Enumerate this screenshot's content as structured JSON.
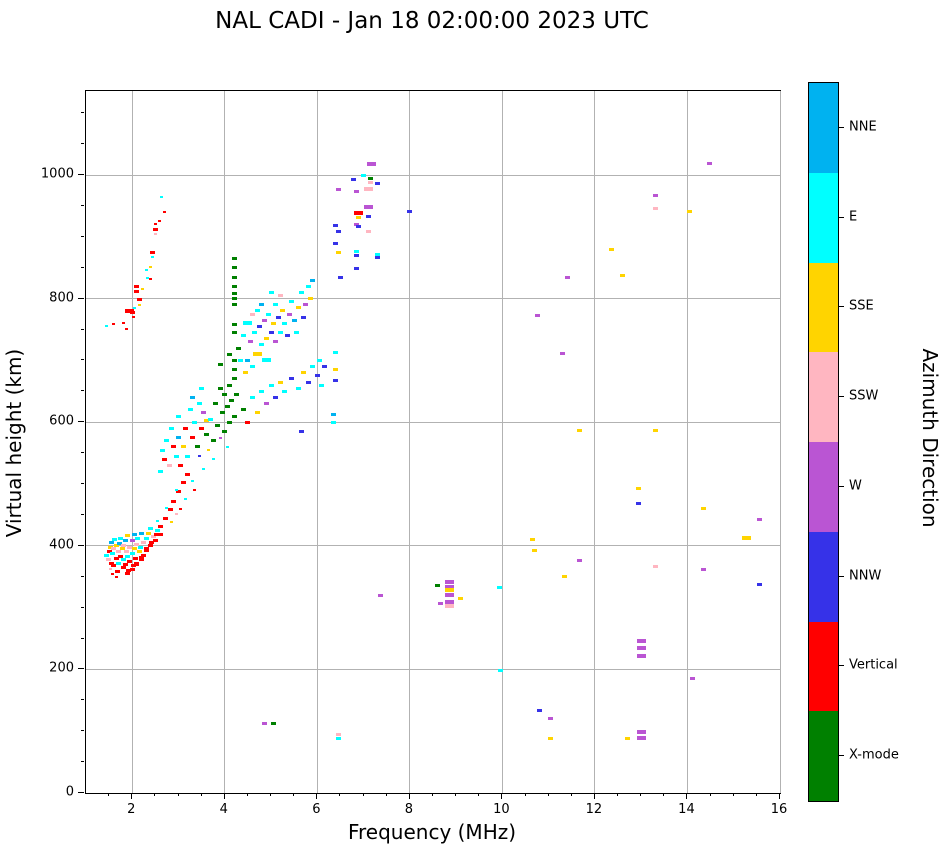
{
  "chart_data": {
    "type": "scatter",
    "title": "NAL CADI - Jan 18 02:00:00 2023 UTC",
    "xlabel": "Frequency (MHz)",
    "ylabel": "Virtual height (km)",
    "xlim": [
      1,
      16
    ],
    "ylim": [
      0,
      1136
    ],
    "x_ticks": [
      2,
      4,
      6,
      8,
      10,
      12,
      14,
      16
    ],
    "y_ticks": [
      0,
      200,
      400,
      600,
      800,
      1000
    ],
    "x_minor_step": 0.5,
    "y_minor_step": 50,
    "grid": true,
    "grid_color": "#b2b2b2",
    "colorbar": {
      "label": "Azimuth Direction",
      "categories": [
        {
          "name": "NNE",
          "color": "#00b2f0"
        },
        {
          "name": "E",
          "color": "#00ffff"
        },
        {
          "name": "SSE",
          "color": "#ffd400"
        },
        {
          "name": "SSW",
          "color": "#ffb6c1"
        },
        {
          "name": "W",
          "color": "#ba55d3"
        },
        {
          "name": "NNW",
          "color": "#3632e8"
        },
        {
          "name": "Vertical",
          "color": "#ff0000"
        },
        {
          "name": "X-mode",
          "color": "#008000"
        }
      ]
    },
    "point_sizes": {
      "1": [
        3,
        2
      ],
      "2": [
        5,
        3
      ],
      "3": [
        9,
        4
      ]
    },
    "points": [
      [
        1.45,
        385,
        "E"
      ],
      [
        1.48,
        378,
        "SSW"
      ],
      [
        1.5,
        390,
        "V"
      ],
      [
        1.52,
        398,
        "SSE"
      ],
      [
        1.55,
        372,
        "V"
      ],
      [
        1.55,
        405,
        "NNE"
      ],
      [
        1.58,
        388,
        "E"
      ],
      [
        1.6,
        395,
        "SSW"
      ],
      [
        1.6,
        368,
        "V"
      ],
      [
        1.62,
        410,
        "E"
      ],
      [
        1.65,
        380,
        "V"
      ],
      [
        1.65,
        400,
        "SSE"
      ],
      [
        1.68,
        358,
        "V"
      ],
      [
        1.7,
        390,
        "SSW"
      ],
      [
        1.7,
        372,
        "E"
      ],
      [
        1.72,
        404,
        "NNE"
      ],
      [
        1.75,
        382,
        "V"
      ],
      [
        1.75,
        412,
        "E"
      ],
      [
        1.78,
        395,
        "SSE"
      ],
      [
        1.8,
        365,
        "V"
      ],
      [
        1.8,
        400,
        "SSW"
      ],
      [
        1.82,
        378,
        "E"
      ],
      [
        1.85,
        408,
        "NNE"
      ],
      [
        1.85,
        370,
        "V"
      ],
      [
        1.88,
        390,
        "SSW"
      ],
      [
        1.9,
        382,
        "E"
      ],
      [
        1.9,
        416,
        "SSE"
      ],
      [
        1.92,
        360,
        "V"
      ],
      [
        1.95,
        398,
        "SSW"
      ],
      [
        1.95,
        375,
        "V"
      ],
      [
        2.0,
        388,
        "E"
      ],
      [
        2.0,
        408,
        "W"
      ],
      [
        2.02,
        368,
        "V"
      ],
      [
        2.05,
        395,
        "SSE"
      ],
      [
        2.05,
        418,
        "NNE"
      ],
      [
        2.08,
        380,
        "V"
      ],
      [
        2.1,
        402,
        "SSW"
      ],
      [
        2.1,
        372,
        "V"
      ],
      [
        2.12,
        412,
        "E"
      ],
      [
        2.15,
        390,
        "SSE"
      ],
      [
        2.18,
        398,
        "E"
      ],
      [
        2.2,
        378,
        "V"
      ],
      [
        2.2,
        420,
        "NNE"
      ],
      [
        2.25,
        405,
        "SSW"
      ],
      [
        2.25,
        385,
        "V"
      ],
      [
        2.3,
        412,
        "E"
      ],
      [
        2.3,
        395,
        "V"
      ],
      [
        2.35,
        420,
        "SSE"
      ],
      [
        2.4,
        400,
        "V"
      ],
      [
        2.4,
        428,
        "E"
      ],
      [
        2.45,
        415,
        "SSW"
      ],
      [
        2.5,
        408,
        "V"
      ],
      [
        2.55,
        425,
        "E"
      ],
      [
        2.6,
        418,
        "V"
      ],
      [
        1.52,
        362,
        "SSW",
        1
      ],
      [
        1.58,
        355,
        "V",
        1
      ],
      [
        1.66,
        350,
        "V",
        1
      ],
      [
        1.9,
        355,
        "V"
      ],
      [
        2.0,
        362,
        "V"
      ],
      [
        2.1,
        370,
        "V"
      ],
      [
        2.2,
        381,
        "V"
      ],
      [
        2.3,
        392,
        "V"
      ],
      [
        2.42,
        405,
        "V"
      ],
      [
        2.52,
        418,
        "V"
      ],
      [
        2.62,
        432,
        "V"
      ],
      [
        2.72,
        445,
        "V"
      ],
      [
        2.82,
        458,
        "V"
      ],
      [
        2.9,
        472,
        "V"
      ],
      [
        3.0,
        488,
        "V"
      ],
      [
        3.1,
        502,
        "V"
      ],
      [
        3.2,
        515,
        "V"
      ],
      [
        2.55,
        440,
        "E",
        1
      ],
      [
        2.75,
        462,
        "E",
        1
      ],
      [
        2.95,
        490,
        "E",
        1
      ],
      [
        2.6,
        520,
        "E"
      ],
      [
        2.65,
        555,
        "E"
      ],
      [
        2.7,
        540,
        "V"
      ],
      [
        2.75,
        570,
        "E"
      ],
      [
        2.8,
        530,
        "SSW"
      ],
      [
        2.85,
        590,
        "E"
      ],
      [
        2.9,
        560,
        "V"
      ],
      [
        2.95,
        545,
        "E"
      ],
      [
        3.0,
        575,
        "NNE"
      ],
      [
        3.0,
        610,
        "E"
      ],
      [
        3.05,
        530,
        "V"
      ],
      [
        3.1,
        560,
        "SSE"
      ],
      [
        3.15,
        590,
        "V"
      ],
      [
        3.2,
        545,
        "E"
      ],
      [
        3.25,
        620,
        "E"
      ],
      [
        3.3,
        575,
        "V"
      ],
      [
        3.3,
        640,
        "NNE"
      ],
      [
        3.35,
        600,
        "E"
      ],
      [
        3.4,
        560,
        "X"
      ],
      [
        3.45,
        630,
        "E"
      ],
      [
        3.5,
        590,
        "V"
      ],
      [
        3.5,
        655,
        "E"
      ],
      [
        3.55,
        615,
        "W"
      ],
      [
        3.6,
        580,
        "X"
      ],
      [
        3.6,
        602,
        "SSE"
      ],
      [
        3.7,
        605,
        "E"
      ],
      [
        3.75,
        570,
        "X"
      ],
      [
        3.8,
        630,
        "X"
      ],
      [
        3.85,
        595,
        "X"
      ],
      [
        3.9,
        655,
        "X"
      ],
      [
        3.9,
        693,
        "X"
      ],
      [
        3.95,
        615,
        "X"
      ],
      [
        4.0,
        585,
        "X"
      ],
      [
        4.0,
        645,
        "X"
      ],
      [
        4.05,
        625,
        "X"
      ],
      [
        4.1,
        600,
        "X"
      ],
      [
        4.1,
        660,
        "X"
      ],
      [
        4.1,
        710,
        "X"
      ],
      [
        4.15,
        635,
        "X"
      ],
      [
        4.2,
        610,
        "X"
      ],
      [
        4.2,
        670,
        "X"
      ],
      [
        4.2,
        685,
        "X"
      ],
      [
        4.2,
        700,
        "X"
      ],
      [
        4.25,
        645,
        "X"
      ],
      [
        4.2,
        745,
        "X"
      ],
      [
        4.2,
        758,
        "X"
      ],
      [
        4.22,
        790,
        "X"
      ],
      [
        4.22,
        800,
        "X"
      ],
      [
        4.22,
        808,
        "X"
      ],
      [
        4.22,
        820,
        "X"
      ],
      [
        4.22,
        835,
        "X"
      ],
      [
        4.22,
        850,
        "X"
      ],
      [
        4.22,
        865,
        "X"
      ],
      [
        3.45,
        545,
        "NNW",
        1
      ],
      [
        3.55,
        525,
        "E",
        1
      ],
      [
        3.65,
        555,
        "SSE",
        1
      ],
      [
        3.75,
        540,
        "E",
        1
      ],
      [
        3.9,
        575,
        "W",
        1
      ],
      [
        4.05,
        560,
        "E",
        1
      ],
      [
        3.3,
        505,
        "E",
        1
      ],
      [
        3.35,
        490,
        "V",
        1
      ],
      [
        3.15,
        475,
        "E",
        1
      ],
      [
        3.05,
        460,
        "V",
        1
      ],
      [
        2.95,
        452,
        "SSW",
        1
      ],
      [
        2.85,
        438,
        "SSE",
        1
      ],
      [
        1.44,
        756,
        "E",
        1
      ],
      [
        1.6,
        759,
        "V",
        1
      ],
      [
        1.8,
        761,
        "V",
        1
      ],
      [
        1.87,
        751,
        "V",
        1
      ],
      [
        1.95,
        780,
        "V",
        3
      ],
      [
        2.0,
        778,
        "V"
      ],
      [
        2.03,
        770,
        "V",
        1
      ],
      [
        2.05,
        785,
        "E",
        1
      ],
      [
        2.15,
        799,
        "V"
      ],
      [
        2.15,
        790,
        "SSE",
        1
      ],
      [
        2.1,
        812,
        "V"
      ],
      [
        2.1,
        820,
        "V"
      ],
      [
        2.23,
        815,
        "SSE",
        1
      ],
      [
        2.3,
        846,
        "E",
        1
      ],
      [
        2.32,
        833,
        "E",
        1
      ],
      [
        2.4,
        851,
        "SSE",
        1
      ],
      [
        2.4,
        832,
        "V",
        1
      ],
      [
        2.44,
        874,
        "V"
      ],
      [
        2.44,
        867,
        "E",
        1
      ],
      [
        2.5,
        905,
        "SSW",
        1
      ],
      [
        2.5,
        912,
        "V"
      ],
      [
        2.5,
        920,
        "V",
        1
      ],
      [
        2.58,
        925,
        "V",
        1
      ],
      [
        2.63,
        964,
        "E",
        1
      ],
      [
        2.69,
        940,
        "V",
        1
      ],
      [
        4.3,
        720,
        "X"
      ],
      [
        4.35,
        700,
        "E"
      ],
      [
        4.4,
        740,
        "E"
      ],
      [
        4.45,
        680,
        "SSE"
      ],
      [
        4.5,
        760,
        "E",
        3
      ],
      [
        4.5,
        700,
        "NNE"
      ],
      [
        4.55,
        730,
        "W"
      ],
      [
        4.6,
        690,
        "E"
      ],
      [
        4.6,
        775,
        "SSW"
      ],
      [
        4.65,
        745,
        "E"
      ],
      [
        4.7,
        710,
        "SSE",
        3
      ],
      [
        4.7,
        780,
        "E"
      ],
      [
        4.75,
        755,
        "NNW"
      ],
      [
        4.8,
        725,
        "E"
      ],
      [
        4.8,
        790,
        "NNE"
      ],
      [
        4.85,
        765,
        "W"
      ],
      [
        4.9,
        735,
        "SSE"
      ],
      [
        4.9,
        700,
        "E",
        3
      ],
      [
        4.95,
        775,
        "E"
      ],
      [
        5.0,
        745,
        "NNW"
      ],
      [
        5.0,
        810,
        "E"
      ],
      [
        5.05,
        760,
        "SSE"
      ],
      [
        5.1,
        730,
        "W"
      ],
      [
        5.1,
        790,
        "E"
      ],
      [
        5.15,
        770,
        "NNW"
      ],
      [
        5.2,
        745,
        "E"
      ],
      [
        5.2,
        805,
        "SSW"
      ],
      [
        5.25,
        780,
        "SSE"
      ],
      [
        5.3,
        760,
        "E"
      ],
      [
        5.35,
        740,
        "NNW"
      ],
      [
        5.4,
        775,
        "W"
      ],
      [
        5.45,
        795,
        "E"
      ],
      [
        5.5,
        765,
        "NNE"
      ],
      [
        5.55,
        745,
        "E"
      ],
      [
        5.6,
        785,
        "SSE"
      ],
      [
        5.65,
        810,
        "E"
      ],
      [
        5.7,
        770,
        "NNW"
      ],
      [
        5.75,
        790,
        "W"
      ],
      [
        5.8,
        820,
        "E"
      ],
      [
        5.85,
        800,
        "SSE"
      ],
      [
        5.9,
        830,
        "NNE"
      ],
      [
        4.4,
        620,
        "X"
      ],
      [
        4.5,
        600,
        "V"
      ],
      [
        4.6,
        640,
        "E"
      ],
      [
        4.7,
        615,
        "SSE"
      ],
      [
        4.8,
        650,
        "E"
      ],
      [
        4.9,
        630,
        "W"
      ],
      [
        5.0,
        660,
        "E"
      ],
      [
        5.1,
        640,
        "NNW"
      ],
      [
        5.2,
        665,
        "SSE"
      ],
      [
        5.3,
        650,
        "E"
      ],
      [
        5.45,
        670,
        "NNW"
      ],
      [
        5.6,
        655,
        "E"
      ],
      [
        5.65,
        585,
        "NNW"
      ],
      [
        5.7,
        680,
        "SSE"
      ],
      [
        5.8,
        665,
        "NNW"
      ],
      [
        5.9,
        690,
        "E"
      ],
      [
        6.0,
        675,
        "NNW"
      ],
      [
        6.05,
        700,
        "E"
      ],
      [
        6.1,
        660,
        "E"
      ],
      [
        6.15,
        690,
        "NNW"
      ],
      [
        6.35,
        612,
        "NNE"
      ],
      [
        6.35,
        600,
        "E"
      ],
      [
        6.4,
        713,
        "E"
      ],
      [
        6.4,
        686,
        "SSE"
      ],
      [
        6.4,
        668,
        "NNW"
      ],
      [
        6.4,
        918,
        "NNW"
      ],
      [
        6.45,
        908,
        "NNW"
      ],
      [
        6.4,
        890,
        "NNW"
      ],
      [
        6.45,
        874,
        "SSE"
      ],
      [
        6.5,
        835,
        "NNW"
      ],
      [
        6.45,
        976,
        "W"
      ],
      [
        6.78,
        992,
        "NNW"
      ],
      [
        6.85,
        974,
        "W"
      ],
      [
        6.85,
        920,
        "W"
      ],
      [
        6.9,
        938,
        "V",
        3
      ],
      [
        6.9,
        931,
        "SSE"
      ],
      [
        6.9,
        917,
        "NNW"
      ],
      [
        6.85,
        877,
        "E"
      ],
      [
        6.85,
        869,
        "NNW"
      ],
      [
        6.85,
        849,
        "NNW"
      ],
      [
        7.0,
        1000,
        "E"
      ],
      [
        7.15,
        995,
        "X"
      ],
      [
        7.15,
        988,
        "SSW"
      ],
      [
        7.1,
        978,
        "SSW",
        3
      ],
      [
        7.1,
        948,
        "W",
        3
      ],
      [
        7.1,
        933,
        "NNW"
      ],
      [
        7.1,
        908,
        "SSW"
      ],
      [
        7.17,
        1018,
        "W",
        3
      ],
      [
        7.3,
        987,
        "NNW"
      ],
      [
        7.3,
        872,
        "E"
      ],
      [
        7.3,
        866,
        "NNW"
      ],
      [
        7.36,
        319,
        "W"
      ],
      [
        8.0,
        941,
        "NNW"
      ],
      [
        8.6,
        336,
        "X"
      ],
      [
        8.66,
        306,
        "W"
      ],
      [
        8.85,
        341,
        "W",
        3
      ],
      [
        8.85,
        334,
        "W",
        3
      ],
      [
        8.85,
        328,
        "SSE",
        3
      ],
      [
        8.85,
        321,
        "W",
        3
      ],
      [
        8.85,
        309,
        "W",
        3
      ],
      [
        8.85,
        303,
        "SSW",
        3
      ],
      [
        9.1,
        314,
        "SSE"
      ],
      [
        9.93,
        332,
        "E"
      ],
      [
        9.95,
        199,
        "E"
      ],
      [
        10.65,
        411,
        "SSE"
      ],
      [
        10.7,
        392,
        "SSE"
      ],
      [
        10.75,
        772,
        "W"
      ],
      [
        10.8,
        134,
        "NNW"
      ],
      [
        11.05,
        121,
        "W"
      ],
      [
        11.05,
        89,
        "SSE"
      ],
      [
        11.35,
        351,
        "SSE"
      ],
      [
        11.4,
        835,
        "W"
      ],
      [
        11.3,
        712,
        "W"
      ],
      [
        11.66,
        587,
        "SSE"
      ],
      [
        11.66,
        377,
        "W"
      ],
      [
        12.35,
        880,
        "SSE"
      ],
      [
        12.6,
        838,
        "SSE"
      ],
      [
        12.7,
        89,
        "SSE"
      ],
      [
        12.95,
        492,
        "SSE"
      ],
      [
        12.95,
        468,
        "NNW"
      ],
      [
        13.0,
        246,
        "W",
        3
      ],
      [
        13.0,
        235,
        "W",
        3
      ],
      [
        13.0,
        221,
        "W",
        3
      ],
      [
        13.0,
        99,
        "W",
        3
      ],
      [
        13.0,
        89,
        "W",
        3
      ],
      [
        13.3,
        967,
        "W"
      ],
      [
        13.3,
        946,
        "SSW"
      ],
      [
        13.3,
        587,
        "SSE"
      ],
      [
        13.3,
        366,
        "SSW"
      ],
      [
        14.05,
        941,
        "SSE"
      ],
      [
        14.1,
        186,
        "W"
      ],
      [
        14.35,
        461,
        "SSE"
      ],
      [
        14.35,
        362,
        "W"
      ],
      [
        14.48,
        1018,
        "W"
      ],
      [
        15.28,
        413,
        "SSE",
        3
      ],
      [
        15.55,
        443,
        "W"
      ],
      [
        15.55,
        338,
        "NNW"
      ],
      [
        4.85,
        112,
        "W"
      ],
      [
        5.05,
        112,
        "X"
      ],
      [
        6.45,
        94,
        "SSW"
      ],
      [
        6.45,
        88,
        "E"
      ]
    ]
  }
}
